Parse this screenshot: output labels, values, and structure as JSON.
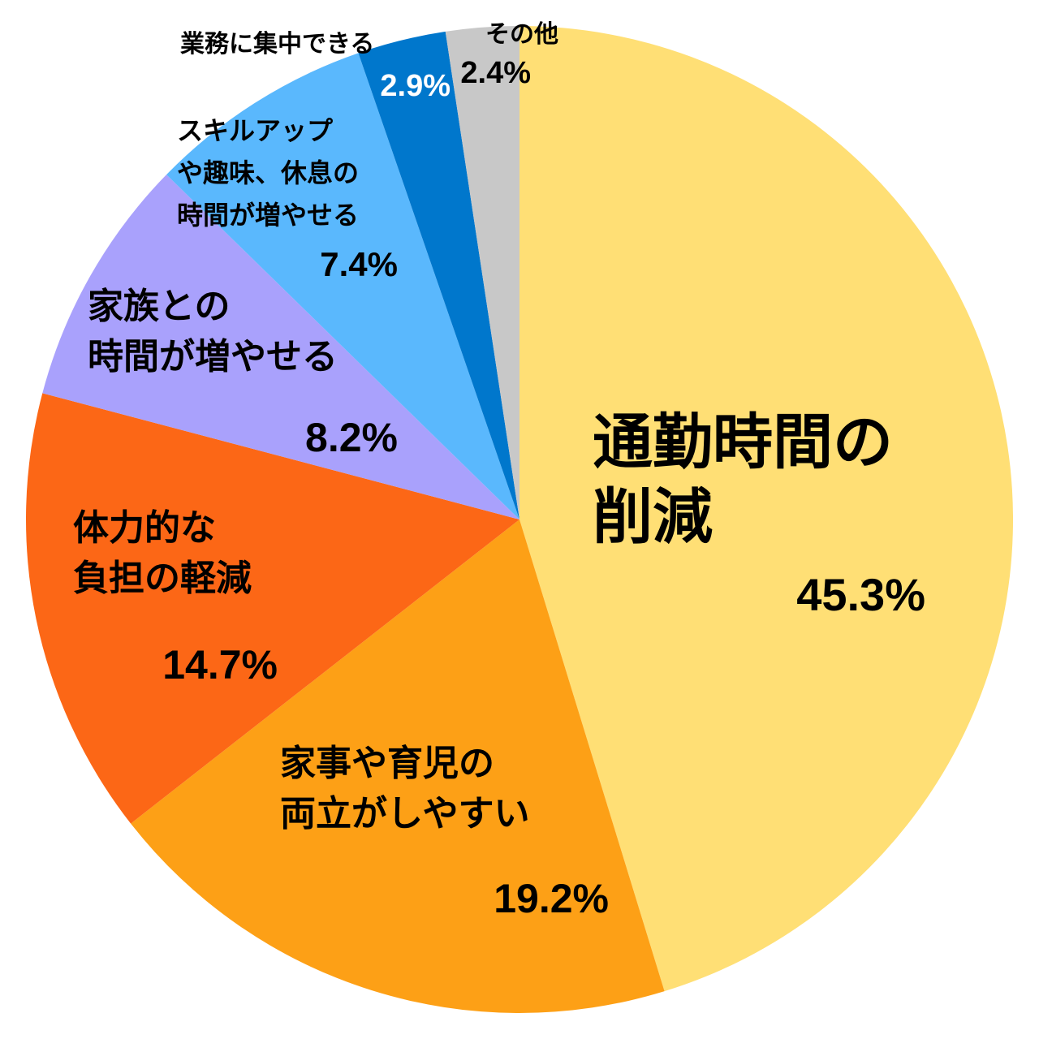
{
  "chart_data": {
    "type": "pie",
    "start_angle": "12 o'clock",
    "direction": "clockwise",
    "slices": [
      {
        "name": "通勤時間の削減",
        "lines": [
          "通勤時間の",
          "削減"
        ],
        "value": 45.3,
        "value_label": "45.3%",
        "color": "#FFDF75",
        "label_color": "#000000"
      },
      {
        "name": "家事や育児の両立がしやすい",
        "lines": [
          "家事や育児の",
          "両立がしやすい"
        ],
        "value": 19.2,
        "value_label": "19.2%",
        "color": "#FDA016",
        "label_color": "#000000"
      },
      {
        "name": "体力的な負担の軽減",
        "lines": [
          "体力的な",
          "負担の軽減"
        ],
        "value": 14.7,
        "value_label": "14.7%",
        "color": "#FC6716",
        "label_color": "#000000"
      },
      {
        "name": "家族との時間が増やせる",
        "lines": [
          "家族との",
          "時間が増やせる"
        ],
        "value": 8.2,
        "value_label": "8.2%",
        "color": "#A9A1FC",
        "label_color": "#000000"
      },
      {
        "name": "スキルアップや趣味、休息の時間が増やせる",
        "lines": [
          "スキルアップ",
          "や趣味、休息の",
          "時間が増やせる"
        ],
        "value": 7.4,
        "value_label": "7.4%",
        "color": "#5AB8FD",
        "label_color": "#000000"
      },
      {
        "name": "業務に集中できる",
        "lines": [
          "業務に集中できる"
        ],
        "value": 2.9,
        "value_label": "2.9%",
        "color": "#0077CC",
        "label_color": "#ffffff"
      },
      {
        "name": "その他",
        "lines": [
          "その他"
        ],
        "value": 2.4,
        "value_label": "2.4%",
        "color": "#C8C8C8",
        "label_color": "#000000"
      }
    ]
  }
}
